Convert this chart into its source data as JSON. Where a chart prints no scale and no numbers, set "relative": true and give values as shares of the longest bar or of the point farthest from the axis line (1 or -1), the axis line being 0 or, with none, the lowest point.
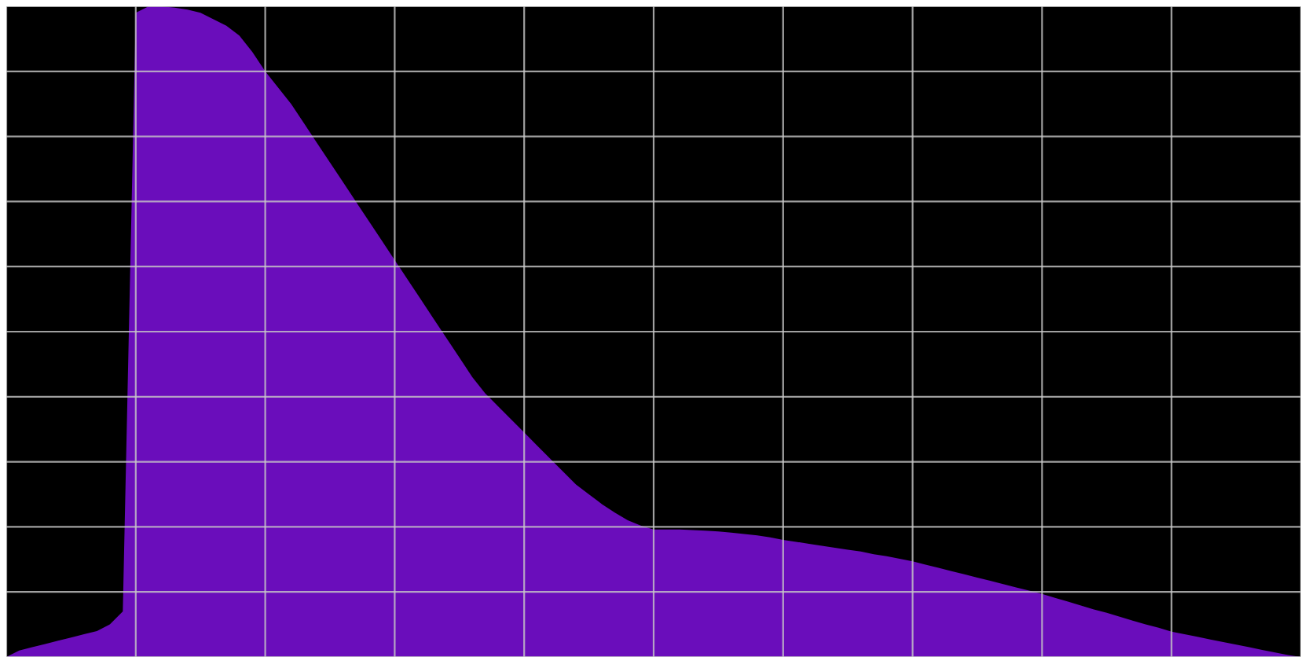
{
  "chart_data": {
    "type": "area",
    "relative": true,
    "grid": true,
    "color": "#6a0dbb",
    "categories": [
      null,
      null,
      null,
      null,
      null,
      null,
      null,
      null,
      null,
      null,
      null,
      null,
      null,
      null,
      null,
      null,
      null,
      null,
      null,
      null,
      null,
      null,
      null,
      null,
      null,
      null,
      null,
      null,
      null,
      null,
      null,
      null,
      null,
      null,
      null,
      null,
      null,
      null,
      null,
      null,
      null,
      null,
      null,
      null,
      null,
      null,
      null,
      null,
      null,
      null,
      null,
      null,
      null,
      null,
      null,
      null,
      null,
      null,
      null,
      null,
      null,
      null,
      null,
      null,
      null,
      null,
      null,
      null,
      null,
      null,
      null,
      null,
      null,
      null,
      null,
      null,
      null,
      null,
      null,
      null,
      null,
      null,
      null,
      null,
      null,
      null,
      null,
      null,
      null,
      null,
      null,
      null,
      null,
      null,
      null,
      null,
      null,
      null,
      null,
      null,
      null
    ],
    "values": [
      0,
      0.01,
      0.015,
      0.02,
      0.025,
      0.03,
      0.035,
      0.04,
      0.05,
      0.07,
      0.99,
      1.0,
      1.0,
      0.998,
      0.995,
      0.99,
      0.98,
      0.97,
      0.955,
      0.93,
      0.9,
      0.875,
      0.85,
      0.82,
      0.79,
      0.76,
      0.73,
      0.7,
      0.67,
      0.64,
      0.61,
      0.58,
      0.55,
      0.52,
      0.49,
      0.46,
      0.43,
      0.405,
      0.385,
      0.365,
      0.345,
      0.325,
      0.305,
      0.285,
      0.265,
      0.25,
      0.235,
      0.222,
      0.21,
      0.202,
      0.196,
      0.196,
      0.196,
      0.195,
      0.194,
      0.193,
      0.191,
      0.189,
      0.187,
      0.184,
      0.18,
      0.177,
      0.174,
      0.171,
      0.168,
      0.165,
      0.162,
      0.158,
      0.155,
      0.151,
      0.147,
      0.142,
      0.137,
      0.132,
      0.127,
      0.122,
      0.117,
      0.112,
      0.107,
      0.102,
      0.097,
      0.091,
      0.085,
      0.079,
      0.073,
      0.068,
      0.062,
      0.056,
      0.05,
      0.045,
      0.039,
      0.035,
      0.031,
      0.027,
      0.023,
      0.019,
      0.015,
      0.011,
      0.007,
      0.003,
      0
    ]
  }
}
